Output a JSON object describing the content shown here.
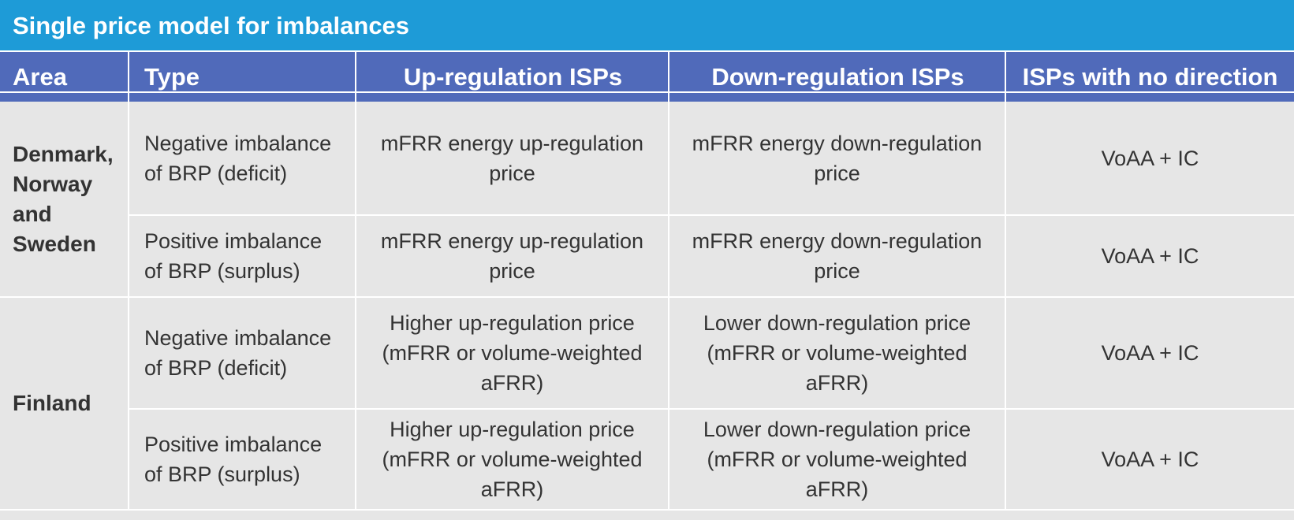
{
  "title": "Single price model for imbalances",
  "headers": {
    "area": "Area",
    "type": "Type",
    "up": "Up-regulation ISPs",
    "down": "Down-regulation ISPs",
    "none": "ISPs with no direction"
  },
  "groups": [
    {
      "area": "Denmark, Norway and Sweden",
      "rows": [
        {
          "type": "Negative imbalance of BRP (deficit)",
          "up": "mFRR energy up-regulation price",
          "down": "mFRR energy down-regulation price",
          "none": "VoAA + IC"
        },
        {
          "type": "Positive imbalance of BRP (surplus)",
          "up": "mFRR energy up-regulation price",
          "down": "mFRR energy down-regulation price",
          "none": "VoAA + IC"
        }
      ]
    },
    {
      "area": "Finland",
      "rows": [
        {
          "type": "Negative imbalance of BRP (deficit)",
          "up": "Higher up-regulation price (mFRR or volume-weighted aFRR)",
          "down": "Lower down-regulation price (mFRR or volume-weighted aFRR)",
          "none": "VoAA + IC"
        },
        {
          "type": "Positive imbalance of BRP (surplus)",
          "up": "Higher up-regulation price (mFRR or volume-weighted aFRR)",
          "down": "Lower down-regulation price (mFRR or volume-weighted aFRR)",
          "none": "VoAA + IC"
        }
      ]
    }
  ]
}
